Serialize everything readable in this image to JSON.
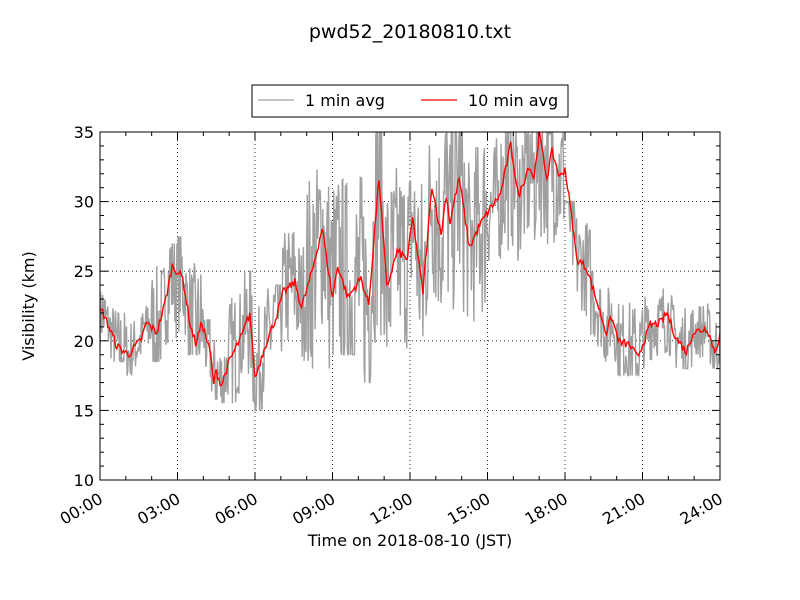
{
  "chart_data": {
    "type": "line",
    "title": "pwd52_20180810.txt",
    "xlabel": "Time on 2018-08-10 (JST)",
    "ylabel": "Visibility (km)",
    "xlim_hours": [
      0,
      24
    ],
    "ylim": [
      10,
      35
    ],
    "grid": true,
    "legend_placement": "top-center, above plot",
    "x_tick_labels": [
      "00:00",
      "03:00",
      "06:00",
      "09:00",
      "12:00",
      "15:00",
      "18:00",
      "21:00",
      "24:00"
    ],
    "x_tick_hours": [
      0,
      3,
      6,
      9,
      12,
      15,
      18,
      21,
      24
    ],
    "y_ticks": [
      10,
      15,
      20,
      25,
      30,
      35
    ],
    "y_tick_labels": [
      "10",
      "15",
      "20",
      "25",
      "30",
      "35"
    ],
    "series": [
      {
        "name": "1 min avg",
        "color": "#a0a0a0",
        "note_hourly_range_km": {
          "hours": [
            0,
            1,
            2,
            3,
            4,
            5,
            6,
            7,
            8,
            9,
            10,
            11,
            12,
            13,
            14,
            15,
            16,
            17,
            18,
            19,
            20,
            21,
            22,
            23
          ],
          "low": [
            18.5,
            17.5,
            18.5,
            19,
            15.5,
            15.5,
            15,
            17.5,
            18,
            19,
            17,
            19,
            20,
            19,
            19,
            24,
            24,
            25,
            21,
            18.5,
            17.5,
            18,
            18,
            18
          ],
          "high": [
            23.5,
            22.5,
            27,
            27.5,
            21.5,
            25,
            24,
            29,
            35,
            35,
            35,
            35,
            35,
            35,
            35,
            35,
            35,
            35,
            30,
            25,
            24,
            24.5,
            23.5,
            23
          ]
        }
      },
      {
        "name": "10 min avg",
        "color": "#ff0000",
        "x_hours": [
          0,
          0.07,
          0.39,
          0.66,
          1.1,
          1.6,
          1.8,
          2.2,
          2.5,
          2.8,
          3.2,
          3.5,
          3.7,
          3.95,
          4.26,
          4.4,
          4.5,
          4.7,
          5.0,
          5.5,
          5.8,
          6.0,
          6.4,
          6.8,
          7.1,
          7.55,
          7.8,
          8.2,
          8.6,
          9.0,
          9.2,
          9.6,
          10.1,
          10.4,
          10.8,
          11.1,
          11.5,
          11.9,
          12.1,
          12.5,
          12.85,
          13.2,
          13.4,
          13.55,
          13.9,
          14.3,
          14.7,
          15.1,
          15.5,
          15.9,
          16.2,
          16.6,
          16.8,
          17.0,
          17.3,
          17.5,
          17.8,
          18.0,
          18.3,
          18.45,
          18.85,
          19.35,
          19.6,
          19.8,
          20.1,
          20.5,
          20.8,
          21.3,
          21.7,
          21.95,
          22.3,
          22.7,
          22.95,
          23.5,
          23.8,
          24.0
        ],
        "y_km": [
          22.0,
          22.2,
          20.8,
          19.6,
          19.0,
          20.1,
          21.3,
          20.6,
          22.6,
          25.4,
          24.5,
          21.1,
          19.8,
          21.3,
          19.2,
          17.0,
          17.8,
          16.8,
          18.5,
          20.4,
          22.0,
          17.3,
          19.7,
          21.6,
          23.5,
          24.2,
          22.4,
          24.9,
          28.1,
          23.1,
          25.4,
          23.1,
          24.5,
          22.6,
          31.7,
          23.8,
          26.4,
          25.9,
          28.8,
          23.5,
          31.2,
          27.6,
          30.5,
          28.5,
          31.7,
          26.7,
          28.3,
          29.5,
          30.5,
          34.1,
          30.3,
          32.6,
          31.7,
          34.9,
          31.7,
          33.6,
          31.7,
          32.4,
          28.3,
          25.9,
          25.2,
          22.1,
          20.6,
          21.7,
          19.9,
          19.7,
          18.8,
          21.1,
          21.3,
          22.0,
          20.2,
          19.2,
          20.6,
          20.9,
          19.2,
          20.4
        ]
      }
    ]
  }
}
